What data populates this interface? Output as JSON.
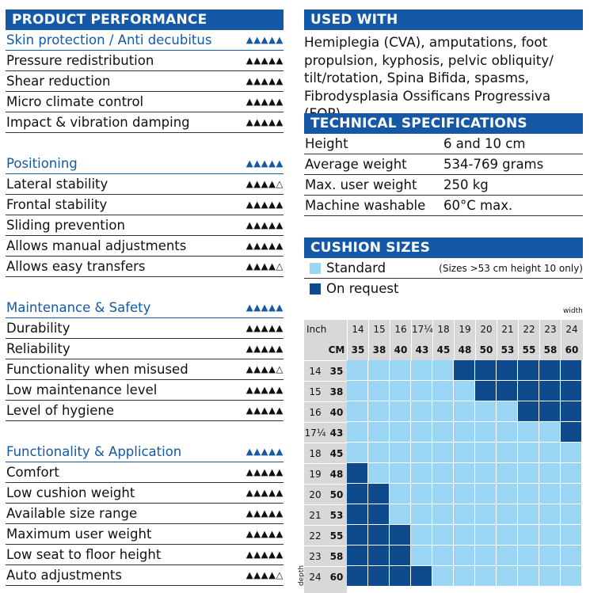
{
  "performance": {
    "title": "PRODUCT PERFORMANCE",
    "groups": [
      {
        "name": "Skin protection  / Anti decubitus",
        "rating": 5,
        "items": [
          {
            "label": "Pressure redistribution",
            "rating": 5
          },
          {
            "label": "Shear reduction",
            "rating": 5
          },
          {
            "label": "Micro climate control",
            "rating": 5
          },
          {
            "label": "Impact & vibration damping",
            "rating": 5
          }
        ]
      },
      {
        "name": "Positioning",
        "rating": 5,
        "items": [
          {
            "label": "Lateral stability",
            "rating": 4
          },
          {
            "label": "Frontal stability",
            "rating": 5
          },
          {
            "label": "Sliding prevention",
            "rating": 5
          },
          {
            "label": "Allows manual adjustments",
            "rating": 5
          },
          {
            "label": "Allows easy transfers",
            "rating": 4
          }
        ]
      },
      {
        "name": "Maintenance & Safety",
        "rating": 5,
        "items": [
          {
            "label": "Durability",
            "rating": 5
          },
          {
            "label": "Reliability",
            "rating": 5
          },
          {
            "label": "Functionality when misused",
            "rating": 4
          },
          {
            "label": "Low maintenance level",
            "rating": 5
          },
          {
            "label": "Level of hygiene",
            "rating": 5
          }
        ]
      },
      {
        "name": "Functionality & Application",
        "rating": 5,
        "items": [
          {
            "label": "Comfort",
            "rating": 5
          },
          {
            "label": "Low cushion weight",
            "rating": 5
          },
          {
            "label": "Available size range",
            "rating": 5
          },
          {
            "label": "Maximum user weight",
            "rating": 5
          },
          {
            "label": "Low seat to floor height",
            "rating": 5
          },
          {
            "label": "Auto adjustments",
            "rating": 4
          }
        ]
      }
    ]
  },
  "used_with": {
    "title": "USED WITH",
    "lines": [
      "Hemiplegia (CVA), amputations, foot",
      "propulsion, kyphosis, pelvic obliquity/",
      "tilt/rotation, Spina Bifida, spasms,",
      "Fibrodysplasia Ossificans Progressiva (FOP)"
    ]
  },
  "specs": {
    "title": "TECHNICAL SPECIFICATIONS",
    "rows": [
      {
        "key": "Height",
        "value": "6 and 10 cm"
      },
      {
        "key": "Average weight",
        "value": "534-769 grams"
      },
      {
        "key": "Max. user weight",
        "value": "250 kg"
      },
      {
        "key": "Machine washable",
        "value": "60°C max."
      }
    ]
  },
  "sizes": {
    "title": "CUSHION SIZES",
    "standard_label": "Standard",
    "request_label": "On request",
    "note": "(Sizes >53 cm height 10 only)",
    "width_label": "width",
    "depth_label": "depth",
    "inch_label": "Inch",
    "cm_label": "CM",
    "standard_color": "#9ad6f4",
    "request_color": "#0f4a8c",
    "accent_color": "#1558a6",
    "width_inch": [
      "14",
      "15",
      "16",
      "17¼",
      "18",
      "19",
      "20",
      "21",
      "22",
      "23",
      "24"
    ],
    "width_cm": [
      "35",
      "38",
      "40",
      "43",
      "45",
      "48",
      "50",
      "53",
      "55",
      "58",
      "60"
    ],
    "depth_inch": [
      "14",
      "15",
      "16",
      "17¼",
      "18",
      "19",
      "20",
      "21",
      "22",
      "23",
      "24"
    ],
    "depth_cm": [
      "35",
      "38",
      "40",
      "43",
      "45",
      "48",
      "50",
      "53",
      "55",
      "58",
      "60"
    ],
    "availability": [
      "SSSSSRRRRRR",
      "SSSSSSRRRRR",
      "SSSSSSSSRRR",
      "SSSSSSSSSSR",
      "SSSSSSSSSSS",
      "RSSSSSSSSSS",
      "RRSSSSSSSSS",
      "RRSSSSSSSSS",
      "RRRSSSSSSSS",
      "RRRSSSSSSSS",
      "RRRRSSSSSSS"
    ]
  }
}
